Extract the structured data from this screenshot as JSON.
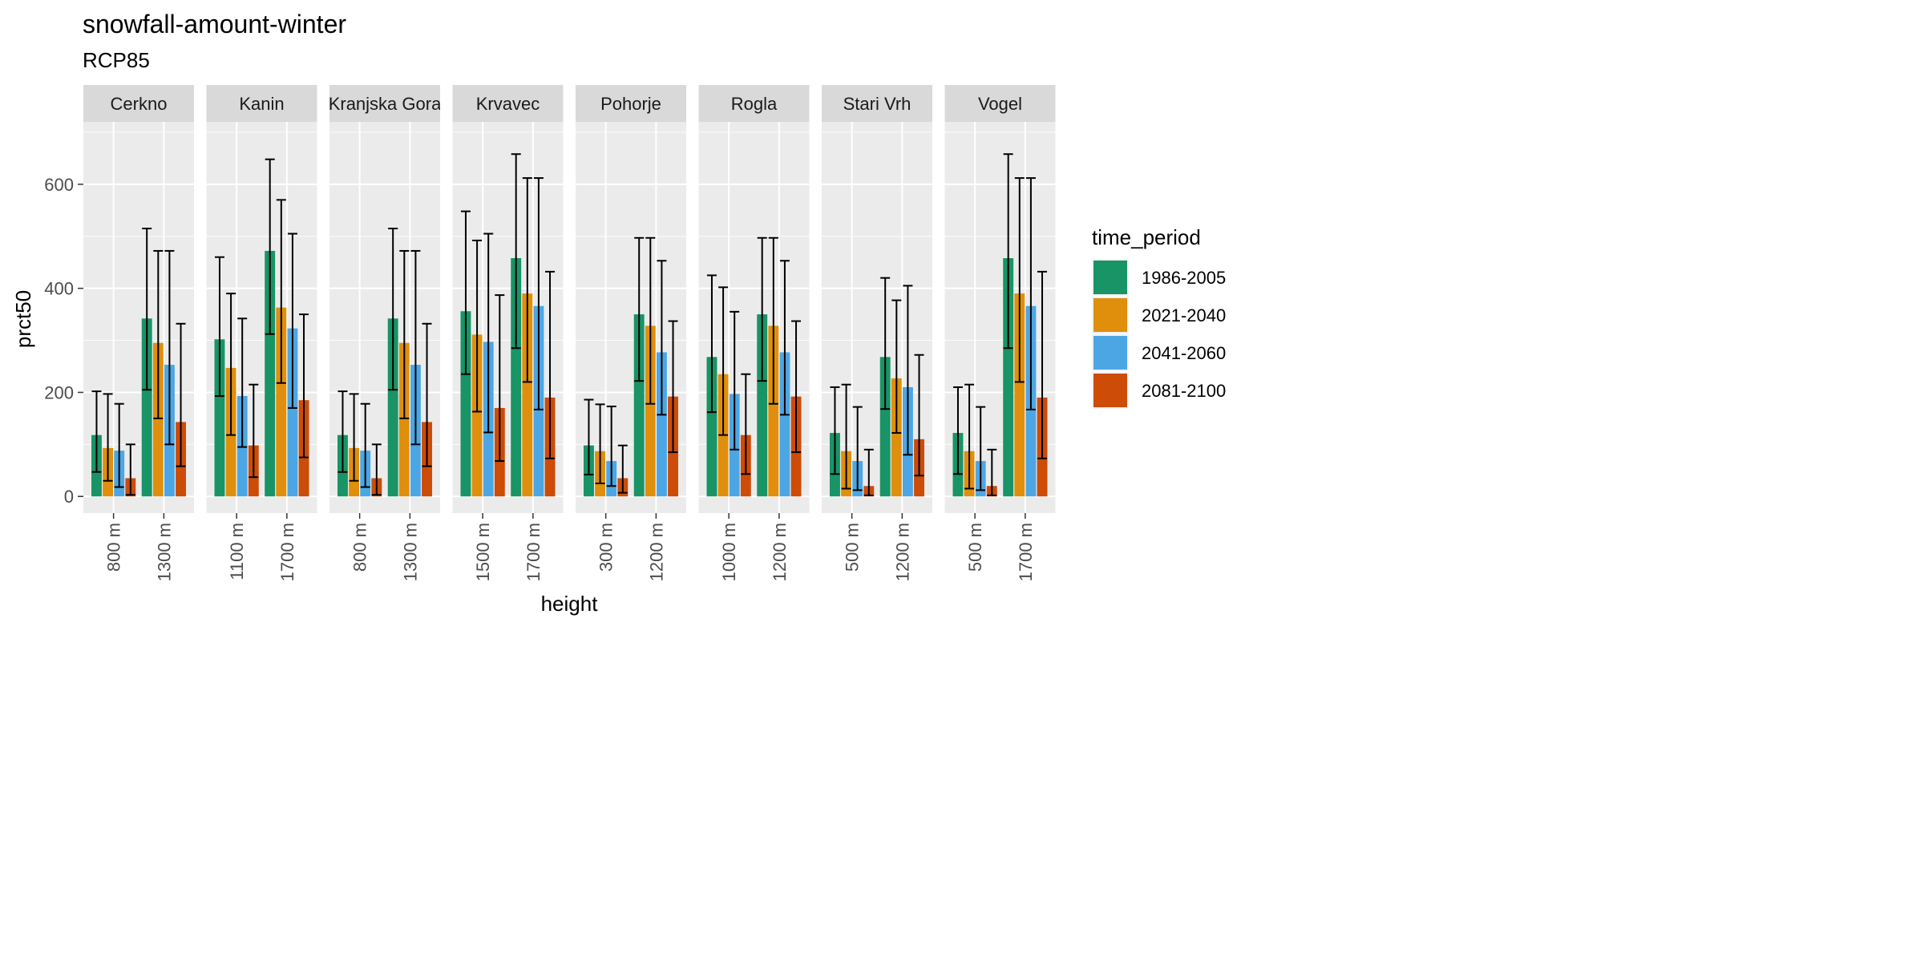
{
  "chart_data": {
    "type": "bar",
    "title": "snowfall-amount-winter",
    "subtitle": "RCP85",
    "xlabel": "height",
    "ylabel": "prct50",
    "ylim": [
      -32,
      720
    ],
    "yticks": [
      0,
      200,
      400,
      600
    ],
    "grid": true,
    "legend": {
      "title": "time_period",
      "position": "right",
      "entries": [
        "1986-2005",
        "2021-2040",
        "2041-2060",
        "2081-2100"
      ]
    },
    "series_colors": [
      "#189466",
      "#e08f0c",
      "#4ca6e4",
      "#cc4c08"
    ],
    "facets": [
      {
        "name": "Cerkno",
        "groups": [
          {
            "height": "800 m",
            "values": [
              118,
              93,
              88,
              35
            ],
            "lower": [
              47,
              30,
              18,
              3
            ],
            "upper": [
              202,
              197,
              178,
              100
            ]
          },
          {
            "height": "1300 m",
            "values": [
              342,
              295,
              253,
              143
            ],
            "lower": [
              205,
              150,
              100,
              58
            ],
            "upper": [
              515,
              472,
              472,
              332
            ]
          }
        ]
      },
      {
        "name": "Kanin",
        "groups": [
          {
            "height": "1100 m",
            "values": [
              302,
              247,
              193,
              98
            ],
            "lower": [
              193,
              118,
              95,
              37
            ],
            "upper": [
              460,
              390,
              342,
              215
            ]
          },
          {
            "height": "1700 m",
            "values": [
              472,
              363,
              323,
              185
            ],
            "lower": [
              312,
              218,
              170,
              75
            ],
            "upper": [
              648,
              570,
              505,
              350
            ]
          }
        ]
      },
      {
        "name": "Kranjska Gora",
        "groups": [
          {
            "height": "800 m",
            "values": [
              118,
              93,
              88,
              35
            ],
            "lower": [
              47,
              30,
              18,
              3
            ],
            "upper": [
              202,
              197,
              178,
              100
            ]
          },
          {
            "height": "1300 m",
            "values": [
              342,
              295,
              253,
              143
            ],
            "lower": [
              205,
              150,
              100,
              58
            ],
            "upper": [
              515,
              472,
              472,
              332
            ]
          }
        ]
      },
      {
        "name": "Krvavec",
        "groups": [
          {
            "height": "1500 m",
            "values": [
              356,
              311,
              297,
              170
            ],
            "lower": [
              235,
              163,
              123,
              68
            ],
            "upper": [
              548,
              492,
              505,
              387
            ]
          },
          {
            "height": "1700 m",
            "values": [
              458,
              390,
              366,
              190
            ],
            "lower": [
              285,
              220,
              167,
              73
            ],
            "upper": [
              658,
              612,
              612,
              432
            ]
          }
        ]
      },
      {
        "name": "Pohorje",
        "groups": [
          {
            "height": "300 m",
            "values": [
              98,
              87,
              68,
              35
            ],
            "lower": [
              42,
              25,
              20,
              7
            ],
            "upper": [
              186,
              177,
              173,
              98
            ]
          },
          {
            "height": "1200 m",
            "values": [
              350,
              328,
              277,
              192
            ],
            "lower": [
              222,
              178,
              157,
              85
            ],
            "upper": [
              497,
              497,
              453,
              337
            ]
          }
        ]
      },
      {
        "name": "Rogla",
        "groups": [
          {
            "height": "1000 m",
            "values": [
              268,
              235,
              197,
              118
            ],
            "lower": [
              162,
              118,
              90,
              43
            ],
            "upper": [
              425,
              402,
              355,
              235
            ]
          },
          {
            "height": "1200 m",
            "values": [
              350,
              328,
              277,
              192
            ],
            "lower": [
              222,
              178,
              157,
              85
            ],
            "upper": [
              497,
              497,
              453,
              337
            ]
          }
        ]
      },
      {
        "name": "Stari Vrh",
        "groups": [
          {
            "height": "500 m",
            "values": [
              122,
              87,
              68,
              20
            ],
            "lower": [
              43,
              15,
              12,
              2
            ],
            "upper": [
              210,
              215,
              172,
              90
            ]
          },
          {
            "height": "1200 m",
            "values": [
              268,
              227,
              210,
              110
            ],
            "lower": [
              168,
              122,
              80,
              40
            ],
            "upper": [
              420,
              377,
              405,
              272
            ]
          }
        ]
      },
      {
        "name": "Vogel",
        "groups": [
          {
            "height": "500 m",
            "values": [
              122,
              87,
              68,
              20
            ],
            "lower": [
              43,
              15,
              12,
              2
            ],
            "upper": [
              210,
              215,
              172,
              90
            ]
          },
          {
            "height": "1700 m",
            "values": [
              458,
              390,
              366,
              190
            ],
            "lower": [
              285,
              220,
              167,
              73
            ],
            "upper": [
              658,
              612,
              612,
              432
            ]
          }
        ]
      }
    ]
  }
}
